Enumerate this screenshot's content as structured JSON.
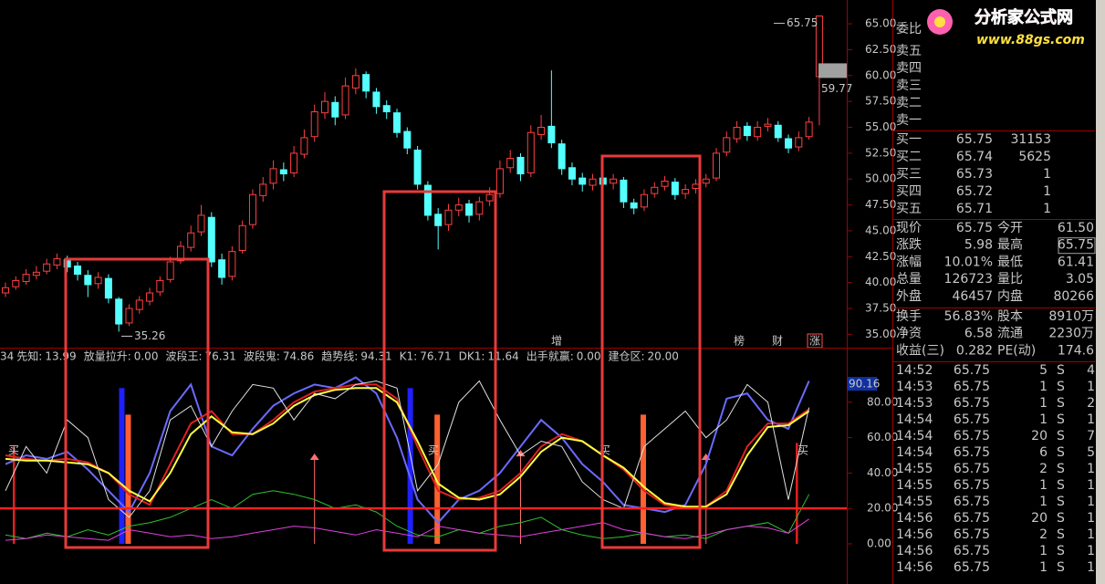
{
  "chart_data": [
    {
      "type": "candlestick",
      "up_color": "#ff4040",
      "down_color": "#54ffff",
      "open": [
        39.0,
        39.6,
        40.1,
        40.7,
        41.1,
        41.7,
        42.2,
        41.6,
        40.7,
        39.9,
        40.4,
        38.4,
        36.1,
        37.4,
        38.2,
        39.1,
        40.3,
        42.1,
        43.4,
        44.9,
        46.3,
        42.2,
        40.6,
        43.1,
        45.6,
        48.4,
        49.6,
        50.9,
        50.6,
        52.4,
        54.1,
        56.4,
        57.4,
        56.2,
        58.8,
        60.1,
        58.4,
        57.1,
        56.4,
        54.6,
        52.8,
        49.4,
        46.6,
        45.6,
        47.0,
        47.6,
        46.6,
        47.9,
        48.6,
        51.1,
        52.1,
        50.6,
        54.3,
        55.1,
        53.4,
        51.1,
        50.1,
        49.4,
        50.1,
        49.6,
        49.9,
        47.7,
        47.3,
        48.6,
        49.3,
        49.7,
        48.6,
        49.1,
        49.6,
        50.1,
        52.6,
        53.9,
        55.1,
        54.1,
        55.1,
        55.2,
        53.9,
        53.1,
        54.1,
        59.9
      ],
      "high": [
        40.0,
        40.6,
        41.3,
        41.6,
        42.3,
        42.8,
        42.6,
        42.0,
        41.2,
        41.0,
        40.8,
        38.6,
        37.9,
        38.7,
        39.5,
        40.6,
        42.5,
        44.0,
        45.5,
        47.5,
        46.8,
        42.8,
        43.5,
        46.0,
        49.0,
        50.2,
        51.8,
        51.6,
        53.2,
        54.8,
        57.2,
        58.4,
        58.0,
        59.8,
        60.7,
        60.4,
        58.8,
        57.6,
        56.8,
        55.0,
        53.2,
        49.8,
        47.2,
        47.6,
        48.2,
        48.0,
        48.3,
        49.2,
        51.8,
        52.8,
        52.5,
        55.2,
        56.2,
        60.5,
        53.8,
        51.6,
        50.6,
        50.5,
        50.6,
        50.5,
        50.2,
        48.1,
        49.0,
        49.7,
        50.3,
        50.1,
        49.5,
        50.0,
        50.5,
        53.0,
        54.6,
        55.6,
        55.5,
        55.6,
        55.9,
        55.6,
        54.3,
        54.6,
        56.0,
        65.75
      ],
      "low": [
        38.6,
        39.3,
        39.8,
        40.3,
        40.8,
        41.3,
        41.0,
        40.2,
        38.6,
        39.4,
        38.0,
        35.26,
        35.8,
        37.0,
        37.8,
        38.7,
        40.0,
        41.8,
        43.0,
        44.5,
        41.5,
        39.8,
        40.2,
        42.8,
        45.2,
        47.8,
        49.0,
        49.8,
        50.2,
        52.0,
        53.6,
        55.8,
        55.2,
        55.8,
        58.2,
        57.8,
        56.3,
        55.8,
        54.0,
        52.4,
        49.0,
        46.0,
        43.2,
        45.0,
        46.4,
        45.8,
        46.0,
        47.4,
        48.2,
        50.6,
        49.8,
        50.2,
        53.8,
        53.0,
        50.4,
        49.4,
        48.8,
        48.9,
        48.8,
        49.0,
        47.2,
        46.6,
        46.9,
        48.2,
        48.9,
        48.0,
        48.1,
        48.6,
        49.2,
        49.8,
        52.2,
        53.5,
        53.7,
        53.7,
        54.6,
        53.6,
        52.5,
        52.7,
        53.8,
        55.2
      ],
      "close": [
        39.5,
        40.2,
        40.8,
        41.0,
        41.8,
        42.3,
        41.5,
        40.8,
        39.8,
        40.5,
        38.5,
        36.0,
        37.5,
        38.3,
        39.0,
        40.2,
        42.0,
        43.5,
        44.8,
        46.5,
        42.0,
        40.5,
        43.0,
        45.5,
        48.5,
        49.5,
        51.0,
        50.5,
        52.5,
        54.0,
        56.5,
        57.5,
        56.0,
        59.0,
        60.0,
        58.5,
        57.0,
        56.5,
        54.5,
        53.0,
        49.5,
        46.5,
        45.5,
        47.0,
        47.5,
        46.5,
        47.8,
        48.5,
        51.0,
        52.0,
        50.5,
        54.5,
        55.0,
        53.5,
        51.0,
        50.0,
        49.5,
        50.0,
        49.5,
        50.0,
        47.8,
        47.2,
        48.5,
        49.2,
        49.8,
        48.5,
        49.0,
        49.5,
        50.0,
        52.5,
        54.0,
        55.0,
        54.2,
        55.0,
        55.3,
        54.0,
        53.0,
        54.0,
        55.5,
        65.75
      ],
      "ylim": [
        33.8,
        67.3
      ],
      "yticks": [
        {
          "value": 35,
          "label": "35.00"
        },
        {
          "value": 37.5,
          "label": "37.50"
        },
        {
          "value": 40,
          "label": "40.00"
        },
        {
          "value": 42.5,
          "label": "42.50"
        },
        {
          "value": 45,
          "label": "45.00"
        },
        {
          "value": 47.5,
          "label": "47.50"
        },
        {
          "value": 50,
          "label": "50.00"
        },
        {
          "value": 52.5,
          "label": "52.50"
        },
        {
          "value": 55,
          "label": "55.00"
        },
        {
          "value": 57.5,
          "label": "57.50"
        },
        {
          "value": 60,
          "label": "60.00"
        },
        {
          "value": 62.5,
          "label": "62.50"
        },
        {
          "value": 65,
          "label": "65.00"
        }
      ],
      "annotations": [
        35.26,
        65.75
      ],
      "price_tag": 59.77,
      "markers": [
        {
          "text": "增",
          "color": "#ffffff"
        },
        {
          "text": "榜",
          "color": "#ffa040"
        },
        {
          "text": "财",
          "color": "#54ffff"
        },
        {
          "text": "涨",
          "color": "#ff5050"
        }
      ]
    },
    {
      "type": "line",
      "readouts": [
        {
          "label": "34",
          "color": "#40ff40"
        },
        {
          "label": "先知:",
          "value": "13.99",
          "color": "#ff54ff"
        },
        {
          "label": "放量拉升:",
          "value": "0.00",
          "color": "#ffffff"
        },
        {
          "label": "波段王:",
          "value": "76.31",
          "color": "#ff4040"
        },
        {
          "label": "波段鬼:",
          "value": "74.86",
          "color": "#ffffff"
        },
        {
          "label": "趋势线:",
          "value": "94.31",
          "color": "#8080ff"
        },
        {
          "label": "K1:",
          "value": "76.71",
          "color": "#ffffff"
        },
        {
          "label": "DK1:",
          "value": "11.64",
          "color": "#ffff54"
        },
        {
          "label": "出手就赢:",
          "value": "0.00",
          "color": "#ffffff"
        },
        {
          "label": "建仓区:",
          "value": "20.00",
          "color": "#ff4040"
        }
      ],
      "series": [
        {
          "color": "#6a6aff",
          "values": [
            45,
            50,
            48,
            52,
            42,
            30,
            18,
            40,
            75,
            90,
            55,
            50,
            65,
            78,
            85,
            90,
            88,
            94,
            85,
            60,
            25,
            12,
            25,
            30,
            40,
            55,
            70,
            60,
            45,
            35,
            22,
            20,
            18,
            22,
            45,
            82,
            85,
            70,
            65,
            92
          ]
        },
        {
          "color": "#e02020",
          "values": [
            50,
            48,
            47,
            48,
            46,
            40,
            28,
            22,
            45,
            68,
            75,
            62,
            62,
            70,
            80,
            86,
            88,
            90,
            90,
            82,
            55,
            30,
            25,
            26,
            30,
            40,
            55,
            62,
            58,
            50,
            42,
            30,
            22,
            20,
            21,
            30,
            55,
            68,
            68,
            76
          ]
        },
        {
          "color": "#ffff40",
          "values": [
            48,
            47,
            47,
            46,
            45,
            40,
            30,
            24,
            40,
            62,
            72,
            63,
            62,
            68,
            78,
            84,
            87,
            88,
            88,
            80,
            58,
            34,
            26,
            25,
            28,
            38,
            52,
            60,
            58,
            50,
            43,
            32,
            23,
            21,
            21,
            28,
            50,
            66,
            67,
            75
          ]
        },
        {
          "color": "#e0e0e0",
          "values": [
            30,
            55,
            40,
            70,
            60,
            25,
            15,
            30,
            70,
            78,
            55,
            75,
            90,
            88,
            70,
            85,
            82,
            90,
            92,
            88,
            30,
            45,
            80,
            92,
            70,
            50,
            58,
            55,
            35,
            25,
            20,
            55,
            65,
            75,
            60,
            70,
            90,
            80,
            25,
            77
          ]
        },
        {
          "color": "#30c030",
          "values": [
            5,
            3,
            6,
            4,
            8,
            5,
            10,
            12,
            15,
            20,
            25,
            20,
            28,
            30,
            28,
            25,
            20,
            22,
            18,
            10,
            5,
            4,
            8,
            6,
            10,
            12,
            15,
            8,
            5,
            3,
            4,
            6,
            4,
            5,
            3,
            8,
            10,
            12,
            6,
            28
          ]
        },
        {
          "color": "#e040e0",
          "values": [
            2,
            3,
            5,
            4,
            3,
            2,
            8,
            6,
            4,
            5,
            3,
            4,
            6,
            8,
            10,
            9,
            7,
            5,
            8,
            6,
            4,
            10,
            8,
            6,
            5,
            4,
            6,
            8,
            10,
            12,
            8,
            6,
            4,
            3,
            5,
            8,
            10,
            9,
            6,
            14
          ]
        }
      ],
      "bars": [
        {
          "color": "#2020ff",
          "style": "bar",
          "values": [
            null,
            null,
            null,
            null,
            null,
            null,
            88,
            null,
            null,
            null,
            null,
            null,
            null,
            null,
            null,
            null,
            null,
            null,
            null,
            null,
            88,
            null,
            null,
            null,
            null,
            null,
            null,
            null,
            null,
            null,
            null,
            null,
            null,
            null,
            null,
            null,
            null,
            null,
            null,
            null
          ]
        },
        {
          "color": "#ff6030",
          "style": "bar",
          "values": [
            null,
            null,
            null,
            null,
            null,
            null,
            73,
            null,
            null,
            null,
            null,
            null,
            null,
            null,
            null,
            null,
            null,
            null,
            null,
            null,
            null,
            73,
            null,
            null,
            null,
            null,
            null,
            null,
            null,
            null,
            null,
            73,
            null,
            null,
            null,
            null,
            null,
            null,
            null,
            null
          ]
        },
        {
          "color": "#e02020",
          "style": "line",
          "values": [
            55,
            null,
            null,
            null,
            null,
            null,
            null,
            null,
            null,
            null,
            null,
            null,
            null,
            null,
            null,
            null,
            null,
            null,
            null,
            null,
            null,
            null,
            null,
            null,
            null,
            null,
            null,
            null,
            null,
            null,
            null,
            null,
            null,
            null,
            null,
            null,
            null,
            null,
            57,
            null
          ]
        },
        {
          "color": "#ff7070",
          "style": "arrow",
          "values": [
            null,
            null,
            null,
            null,
            null,
            null,
            null,
            null,
            null,
            null,
            null,
            null,
            null,
            null,
            null,
            50,
            null,
            null,
            null,
            null,
            null,
            null,
            null,
            null,
            null,
            52,
            null,
            null,
            null,
            null,
            null,
            null,
            null,
            null,
            50,
            null,
            null,
            null,
            null,
            null
          ]
        }
      ],
      "hline": 20,
      "hline_color": "#ff2020",
      "axis_tag": 90.16,
      "signal_labels": [
        "买",
        "买",
        "买",
        "买"
      ],
      "ylim": [
        -22.7,
        109.8
      ],
      "yticks": [
        {
          "value": 0,
          "label": "0.00"
        },
        {
          "value": 20,
          "label": "20.00"
        },
        {
          "value": 40,
          "label": "40.00"
        },
        {
          "value": 60,
          "label": "60.00"
        },
        {
          "value": 80,
          "label": "80.00"
        }
      ]
    }
  ],
  "watermark": {
    "title": "分析家公式网",
    "url": "www.88gs.com"
  },
  "quote_panel": {
    "ratio_label": "委比",
    "asks": [
      "卖五",
      "卖四",
      "卖三",
      "卖二",
      "卖一"
    ],
    "bids": [
      [
        "买一",
        "65.75",
        "31153"
      ],
      [
        "买二",
        "65.74",
        "5625"
      ],
      [
        "买三",
        "65.73",
        "1"
      ],
      [
        "买四",
        "65.72",
        "1"
      ],
      [
        "买五",
        "65.71",
        "1"
      ]
    ],
    "stats": [
      {
        "label": "现价",
        "value": "65.75",
        "color": "#ff4040",
        "label2": "今开",
        "value2": "61.50",
        "color2": "#ff4040"
      },
      {
        "label": "涨跌",
        "value": "5.98",
        "color": "#ff4040",
        "label2": "最高",
        "value2": "65.75",
        "color2": "#ff4040",
        "boxed": true
      },
      {
        "label": "涨幅",
        "value": "10.01%",
        "color": "#ff4040",
        "label2": "最低",
        "value2": "61.41",
        "color2": "#ff4040"
      },
      {
        "label": "总量",
        "value": "126723",
        "color": "#ffff54",
        "label2": "量比",
        "value2": "3.05",
        "color2": "#ff4040"
      },
      {
        "label": "外盘",
        "value": "46457",
        "color": "#ff4040",
        "label2": "内盘",
        "value2": "80266",
        "color2": "#40ff40"
      }
    ],
    "stats2": [
      {
        "label": "换手",
        "value": "56.83%",
        "label2": "股本",
        "value2": "8910万"
      },
      {
        "label": "净资",
        "value": "6.58",
        "label2": "流通",
        "value2": "2230万"
      },
      {
        "label": "收益(三)",
        "value": "0.282",
        "label2": "PE(动)",
        "value2": "174.6"
      }
    ],
    "ticks": [
      [
        "14:52",
        "65.75",
        "5",
        "S",
        "4"
      ],
      [
        "14:53",
        "65.75",
        "1",
        "S",
        "1"
      ],
      [
        "14:53",
        "65.75",
        "1",
        "S",
        "2"
      ],
      [
        "14:54",
        "65.75",
        "1",
        "S",
        "1"
      ],
      [
        "14:54",
        "65.75",
        "20",
        "S",
        "7"
      ],
      [
        "14:54",
        "65.75",
        "6",
        "S",
        "5"
      ],
      [
        "14:55",
        "65.75",
        "2",
        "S",
        "1"
      ],
      [
        "14:55",
        "65.75",
        "1",
        "S",
        "1"
      ],
      [
        "14:55",
        "65.75",
        "1",
        "S",
        "1"
      ],
      [
        "14:56",
        "65.75",
        "20",
        "S",
        "1"
      ],
      [
        "14:56",
        "65.75",
        "2",
        "S",
        "1"
      ],
      [
        "14:56",
        "65.75",
        "1",
        "S",
        "1"
      ],
      [
        "14:56",
        "65.75",
        "1",
        "S",
        "1"
      ]
    ]
  }
}
